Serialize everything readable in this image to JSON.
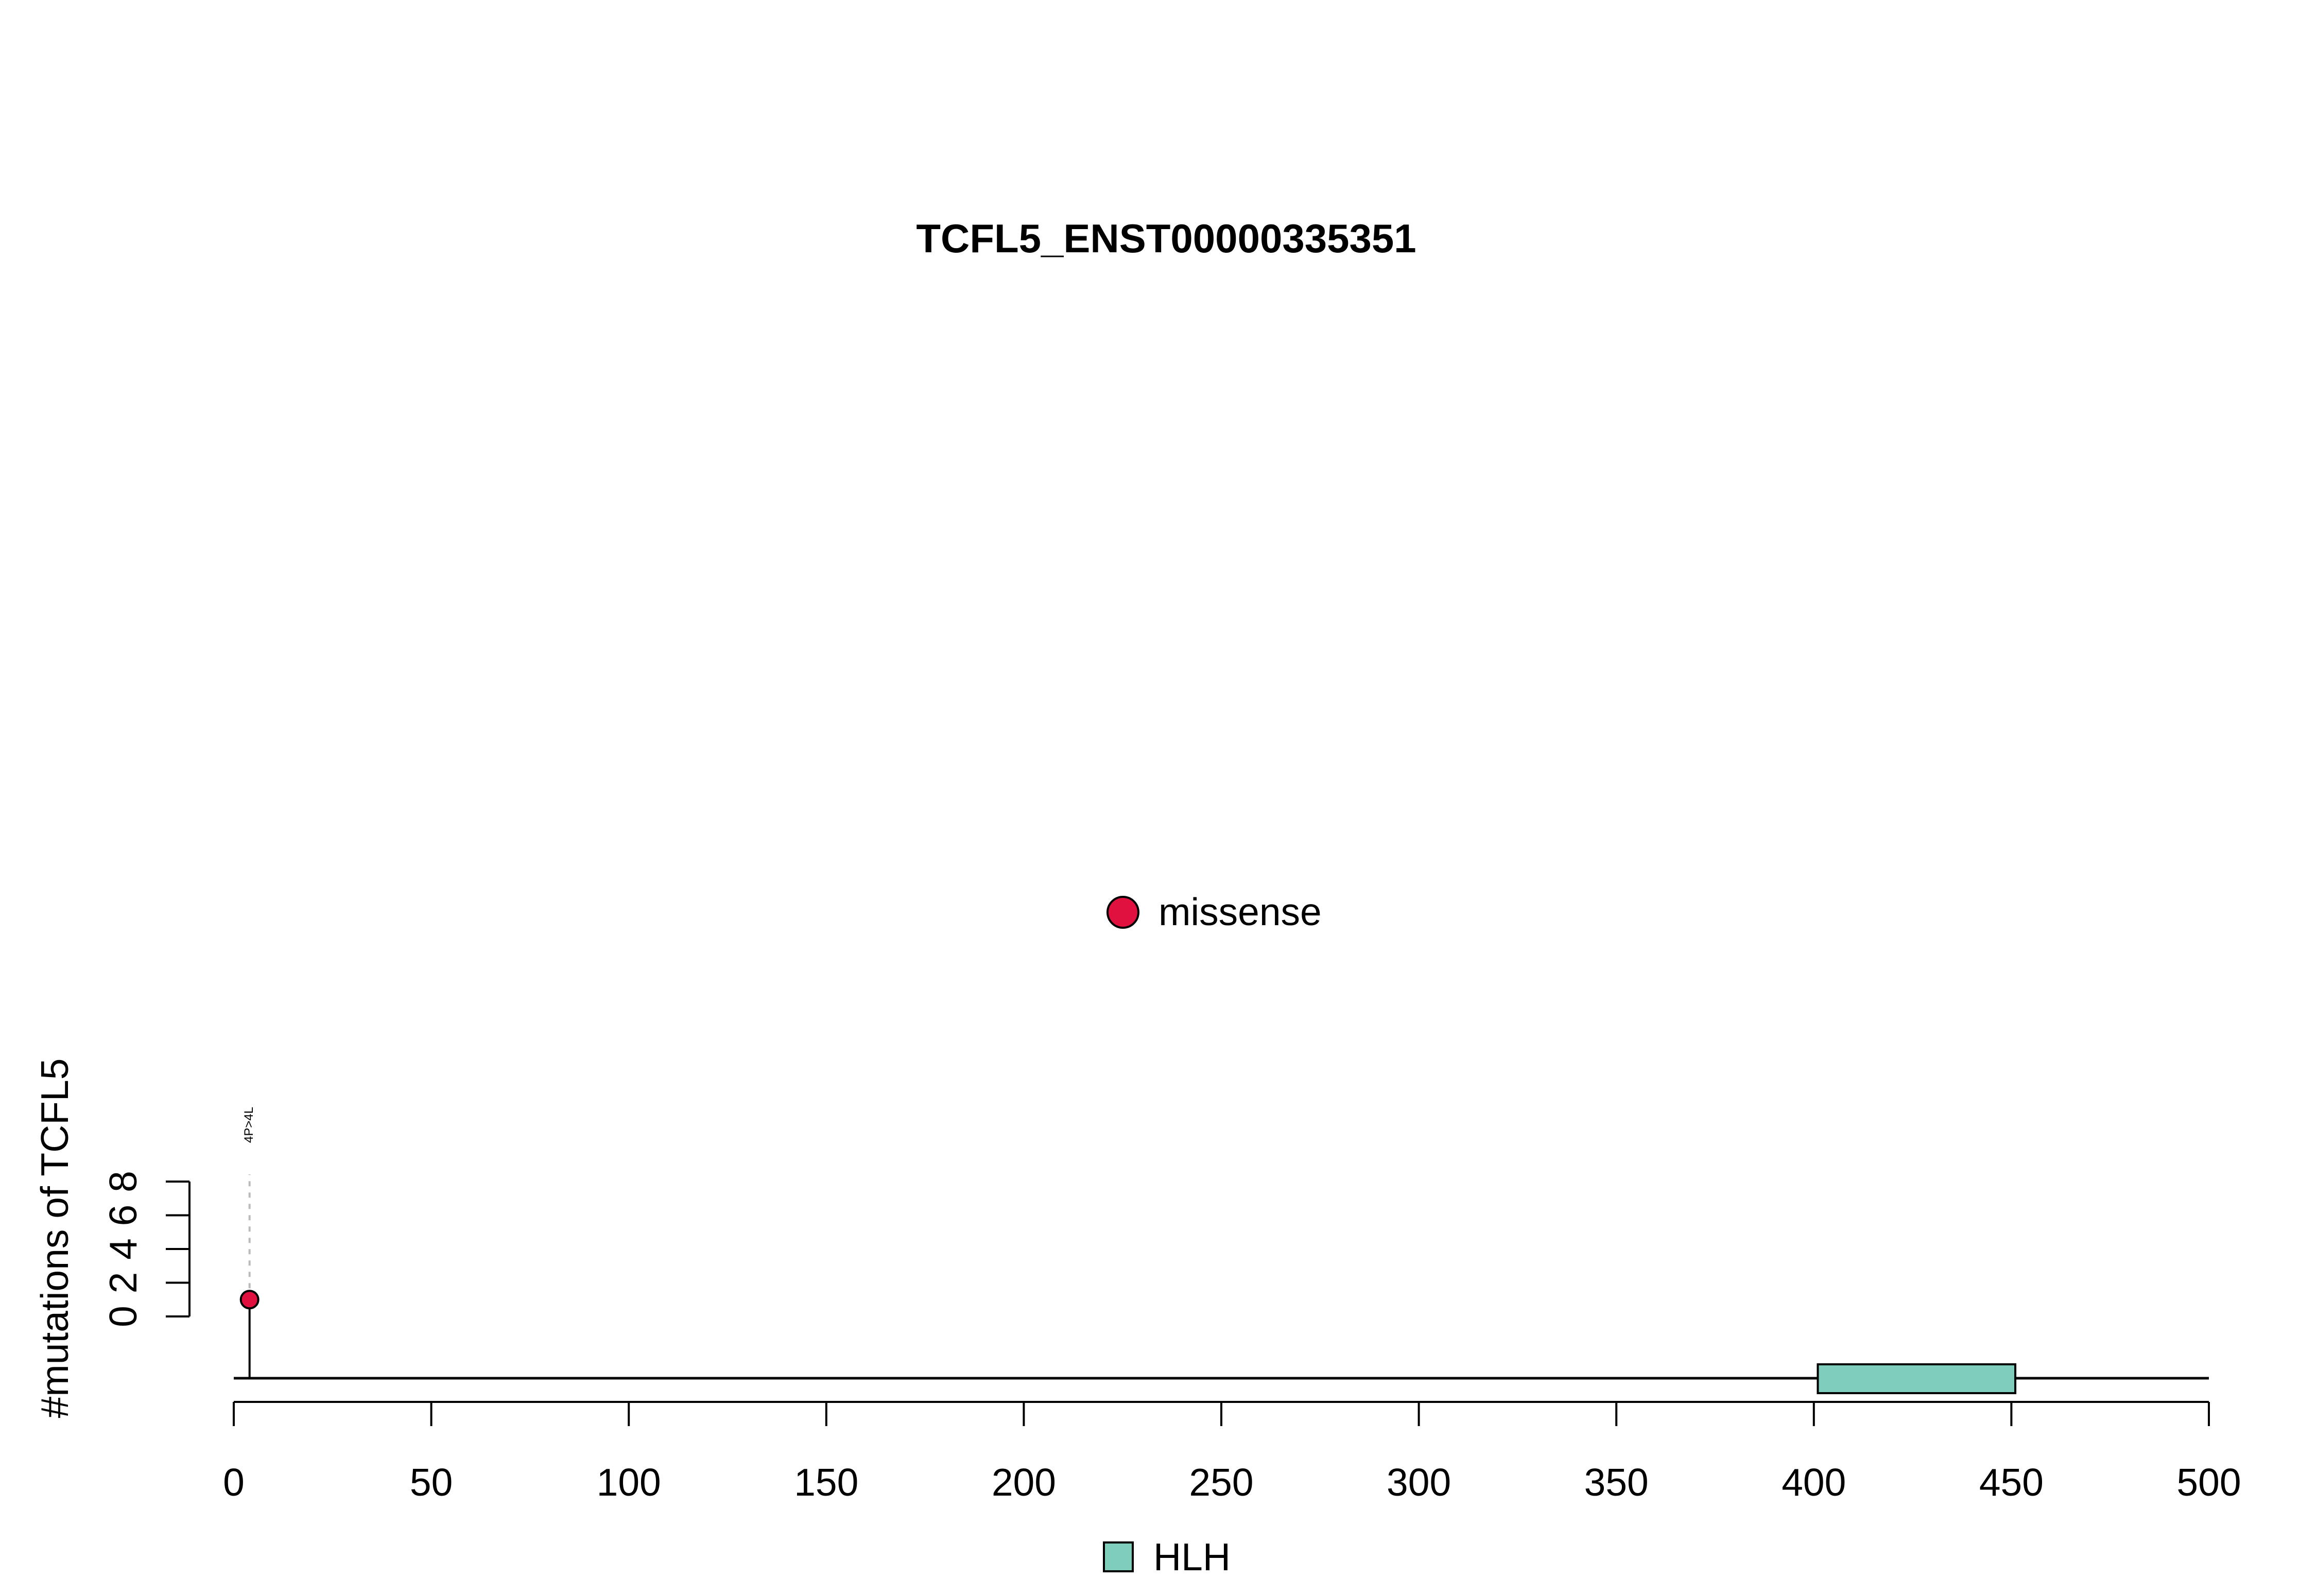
{
  "chart_data": {
    "type": "lollipop",
    "title": "TCFL5_ENST00000335351",
    "ylabel": "#mutations of TCFL5",
    "xlabel": "",
    "xlim": [
      0,
      500
    ],
    "ylim": [
      0,
      8
    ],
    "x_ticks": [
      "0",
      "50",
      "100",
      "150",
      "200",
      "250",
      "300",
      "350",
      "400",
      "450",
      "500"
    ],
    "y_ticks": [
      "0",
      "2",
      "4",
      "6",
      "8"
    ],
    "protein_length": 500,
    "mutation_legend": [
      {
        "label": "missense",
        "color": "#E0103F"
      }
    ],
    "mutations": [
      {
        "position": 4,
        "count": 1,
        "type": "missense",
        "label": "4P>4L",
        "color": "#E0103F"
      }
    ],
    "domains": [
      {
        "name": "HLH",
        "start": 401,
        "end": 451,
        "color": "#7FCDBB"
      }
    ],
    "domain_legend": [
      {
        "label": "HLH",
        "color": "#7FCDBB"
      }
    ]
  }
}
